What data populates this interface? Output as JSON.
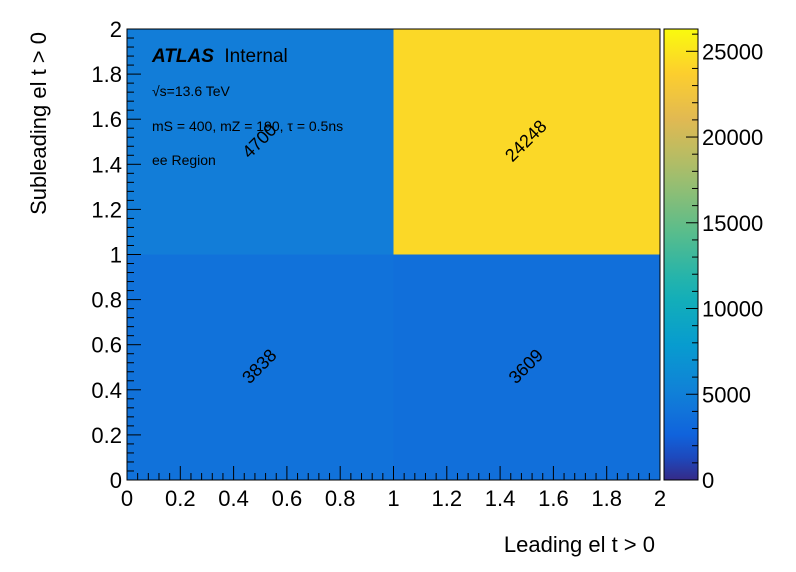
{
  "chart_data": {
    "type": "heatmap",
    "xlabel": "Leading el t > 0",
    "ylabel": "Subleading el t > 0",
    "xlim": [
      0,
      2
    ],
    "ylim": [
      0,
      2
    ],
    "x_ticks": [
      "0",
      "0.2",
      "0.4",
      "0.6",
      "0.8",
      "1",
      "1.2",
      "1.4",
      "1.6",
      "1.8",
      "2"
    ],
    "y_ticks": [
      "0",
      "0.2",
      "0.4",
      "0.6",
      "0.8",
      "1",
      "1.2",
      "1.4",
      "1.6",
      "1.8",
      "2"
    ],
    "cells": [
      {
        "x": [
          0,
          1
        ],
        "y": [
          0,
          1
        ],
        "value": 3838,
        "label": "3838"
      },
      {
        "x": [
          1,
          2
        ],
        "y": [
          0,
          1
        ],
        "value": 3609,
        "label": "3609"
      },
      {
        "x": [
          0,
          1
        ],
        "y": [
          1,
          2
        ],
        "value": 4700,
        "label": "4700"
      },
      {
        "x": [
          1,
          2
        ],
        "y": [
          1,
          2
        ],
        "value": 24248,
        "label": "24248"
      }
    ],
    "colorbar": {
      "range": [
        0,
        26300
      ],
      "ticks": [
        "0",
        "5000",
        "10000",
        "15000",
        "20000",
        "25000"
      ],
      "colormap": "viridis"
    },
    "annotations": {
      "experiment": "ATLAS",
      "status": "Internal",
      "energy": "√s=13.6 TeV",
      "params": "mS = 400, mZ = 190, τ = 0.5ns",
      "region": "ee Region"
    },
    "grid": false
  }
}
